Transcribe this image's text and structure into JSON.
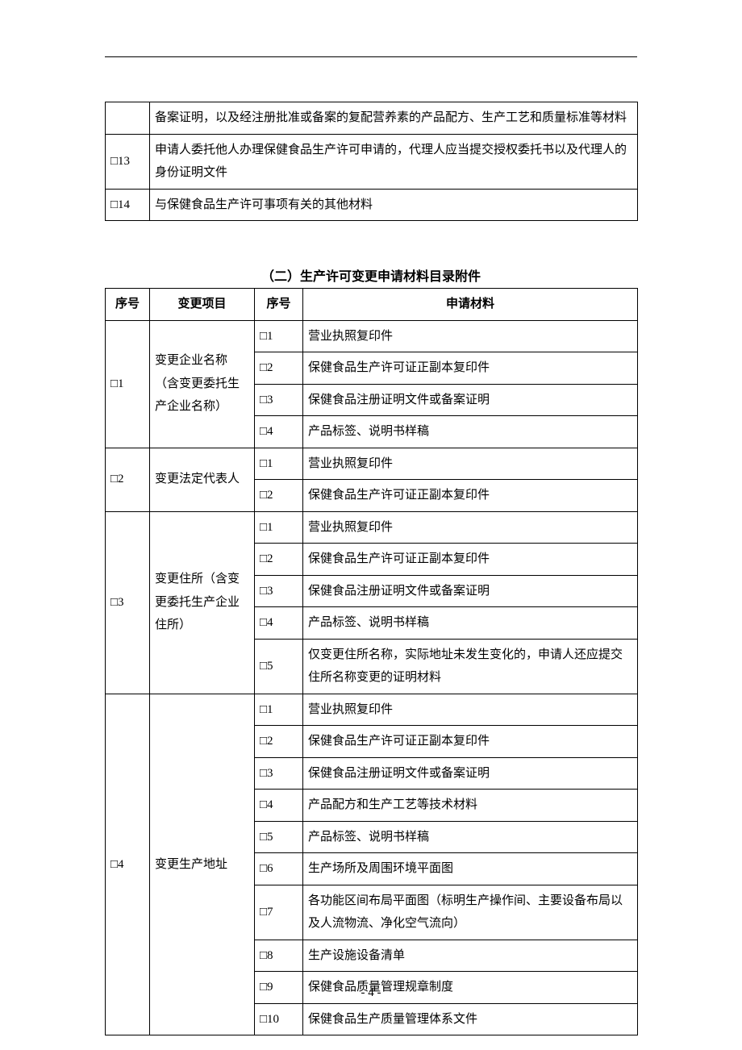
{
  "table1": {
    "rows": [
      {
        "num": "",
        "text": "备案证明，以及经注册批准或备案的复配营养素的产品配方、生产工艺和质量标准等材料"
      },
      {
        "num": "□13",
        "text": "申请人委托他人办理保健食品生产许可申请的，代理人应当提交授权委托书以及代理人的身份证明文件"
      },
      {
        "num": "□14",
        "text": "与保健食品生产许可事项有关的其他材料"
      }
    ]
  },
  "section2_title": "（二）生产许可变更申请材料目录附件",
  "table2": {
    "headers": {
      "a": "序号",
      "b": "变更项目",
      "c": "序号",
      "d": "申请材料"
    },
    "groups": [
      {
        "num": "□1",
        "project": "变更企业名称（含变更委托生产企业名称）",
        "items": [
          {
            "n": "□1",
            "t": "营业执照复印件"
          },
          {
            "n": "□2",
            "t": "保健食品生产许可证正副本复印件"
          },
          {
            "n": "□3",
            "t": "保健食品注册证明文件或备案证明"
          },
          {
            "n": "□4",
            "t": "产品标签、说明书样稿"
          }
        ]
      },
      {
        "num": "□2",
        "project": "变更法定代表人",
        "items": [
          {
            "n": "□1",
            "t": "营业执照复印件"
          },
          {
            "n": "□2",
            "t": "保健食品生产许可证正副本复印件"
          }
        ]
      },
      {
        "num": "□3",
        "project": "变更住所（含变更委托生产企业住所）",
        "items": [
          {
            "n": "□1",
            "t": "营业执照复印件"
          },
          {
            "n": "□2",
            "t": "保健食品生产许可证正副本复印件"
          },
          {
            "n": "□3",
            "t": "保健食品注册证明文件或备案证明"
          },
          {
            "n": "□4",
            "t": "产品标签、说明书样稿"
          },
          {
            "n": "□5",
            "t": "仅变更住所名称，实际地址未发生变化的，申请人还应提交住所名称变更的证明材料"
          }
        ]
      },
      {
        "num": "□4",
        "project": "变更生产地址",
        "items": [
          {
            "n": "□1",
            "t": "营业执照复印件"
          },
          {
            "n": "□2",
            "t": "保健食品生产许可证正副本复印件"
          },
          {
            "n": "□3",
            "t": "保健食品注册证明文件或备案证明"
          },
          {
            "n": "□4",
            "t": "产品配方和生产工艺等技术材料"
          },
          {
            "n": "□5",
            "t": "产品标签、说明书样稿"
          },
          {
            "n": "□6",
            "t": "生产场所及周围环境平面图"
          },
          {
            "n": "□7",
            "t": "各功能区间布局平面图（标明生产操作间、主要设备布局以及人流物流、净化空气流向）"
          },
          {
            "n": "□8",
            "t": "生产设施设备清单"
          },
          {
            "n": "□9",
            "t": "保健食品质量管理规章制度"
          },
          {
            "n": "□10",
            "t": "保健食品生产质量管理体系文件"
          }
        ]
      }
    ]
  },
  "page_number": "- 4 -"
}
